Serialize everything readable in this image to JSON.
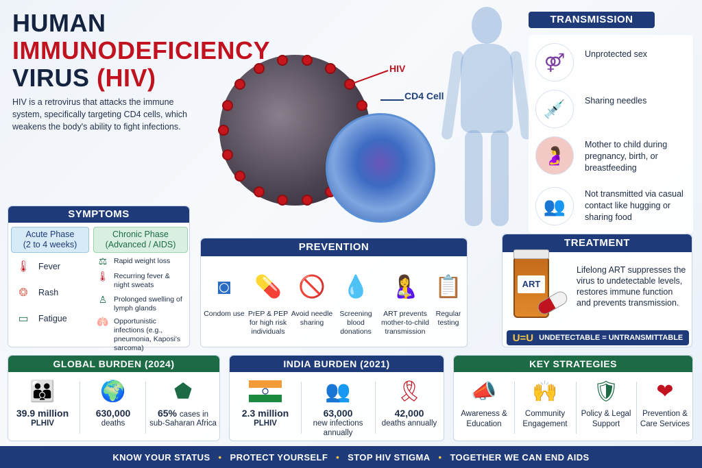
{
  "title": {
    "line1": "HUMAN",
    "line2": "IMMUNODEFICIENCY",
    "line3": "VIRUS",
    "line3_abbr": "(HIV)"
  },
  "intro": "HIV is a retrovirus that attacks the immune system, specifically targeting CD4 cells, which weakens the body's ability to fight infections.",
  "graphic_labels": {
    "hiv": "HIV",
    "cd4": "CD4 Cell"
  },
  "transmission": {
    "heading": "TRANSMISSION",
    "items": [
      {
        "icon": "gender-symbols-icon",
        "text": "Unprotected sex"
      },
      {
        "icon": "syringe-icon",
        "text": "Sharing needles"
      },
      {
        "icon": "pregnant-mother-icon",
        "text": "Mother to child during pregnancy, birth, or breastfeeding"
      },
      {
        "icon": "two-people-icon",
        "text": "Not transmitted via casual contact like hugging or sharing food"
      }
    ]
  },
  "symptoms": {
    "heading": "SYMPTOMS",
    "acute": {
      "title": "Acute Phase",
      "subtitle": "(2 to 4 weeks)",
      "items": [
        {
          "icon": "thermometer-icon",
          "text": "Fever"
        },
        {
          "icon": "rash-icon",
          "text": "Rash"
        },
        {
          "icon": "battery-low-icon",
          "text": "Fatigue"
        }
      ]
    },
    "chronic": {
      "title": "Chronic Phase",
      "subtitle": "(Advanced / AIDS)",
      "items": [
        {
          "icon": "scale-icon",
          "text": "Rapid weight loss"
        },
        {
          "icon": "thermometer-icon",
          "text": "Recurring fever & night sweats"
        },
        {
          "icon": "lymph-icon",
          "text": "Prolonged swelling of lymph glands"
        },
        {
          "icon": "lungs-icon",
          "text": "Opportunistic infections (e.g., pneumonia, Kaposi's sarcoma)"
        }
      ]
    }
  },
  "prevention": {
    "heading": "PREVENTION",
    "items": [
      {
        "icon": "condom-icon",
        "text": "Condom use"
      },
      {
        "icon": "pill-capsule-icon",
        "text": "PrEP & PEP for high risk individuals"
      },
      {
        "icon": "no-needle-icon",
        "text": "Avoid needle sharing"
      },
      {
        "icon": "blood-drop-icon",
        "text": "Screening blood donations"
      },
      {
        "icon": "mother-child-icon",
        "text": "ART prevents mother-to-child transmission"
      },
      {
        "icon": "checklist-icon",
        "text": "Regular testing"
      }
    ]
  },
  "treatment": {
    "heading": "TREATMENT",
    "bottle_label": "ART",
    "text": "Lifelong ART suppresses the virus to undetectable levels, restores immune function and prevents transmission.",
    "uu_big": "U=U",
    "uu_text": "UNDETECTABLE = UNTRANSMITTABLE"
  },
  "global_burden": {
    "heading": "GLOBAL BURDEN (2024)",
    "items": [
      {
        "icon": "people-group-icon",
        "value": "39.9 million",
        "sub": "PLHIV"
      },
      {
        "icon": "globe-icon",
        "value": "630,000",
        "sub": "deaths"
      },
      {
        "icon": "africa-map-icon",
        "value": "65%",
        "sub_inline": "cases in",
        "sub": "sub-Saharan Africa"
      }
    ]
  },
  "india_burden": {
    "heading": "INDIA BURDEN (2021)",
    "items": [
      {
        "icon": "india-flag-icon",
        "value": "2.3 million",
        "sub": "PLHIV"
      },
      {
        "icon": "people-group-icon",
        "value": "63,000",
        "sub": "new infections annually"
      },
      {
        "icon": "red-ribbon-icon",
        "value": "42,000",
        "sub": "deaths annually"
      }
    ]
  },
  "key_strategies": {
    "heading": "KEY STRATEGIES",
    "items": [
      {
        "icon": "megaphone-icon",
        "text": "Awareness & Education"
      },
      {
        "icon": "community-icon",
        "text": "Community Engagement"
      },
      {
        "icon": "shield-check-icon",
        "text": "Policy & Legal Support"
      },
      {
        "icon": "heart-hand-icon",
        "text": "Prevention & Care Services"
      }
    ]
  },
  "footer": {
    "items": [
      "KNOW YOUR STATUS",
      "PROTECT YOURSELF",
      "STOP HIV STIGMA",
      "TOGETHER WE CAN END AIDS"
    ]
  },
  "colors": {
    "navy": "#1e3a78",
    "red": "#c1121f",
    "green": "#1c6b44",
    "gold": "#f6c744"
  }
}
